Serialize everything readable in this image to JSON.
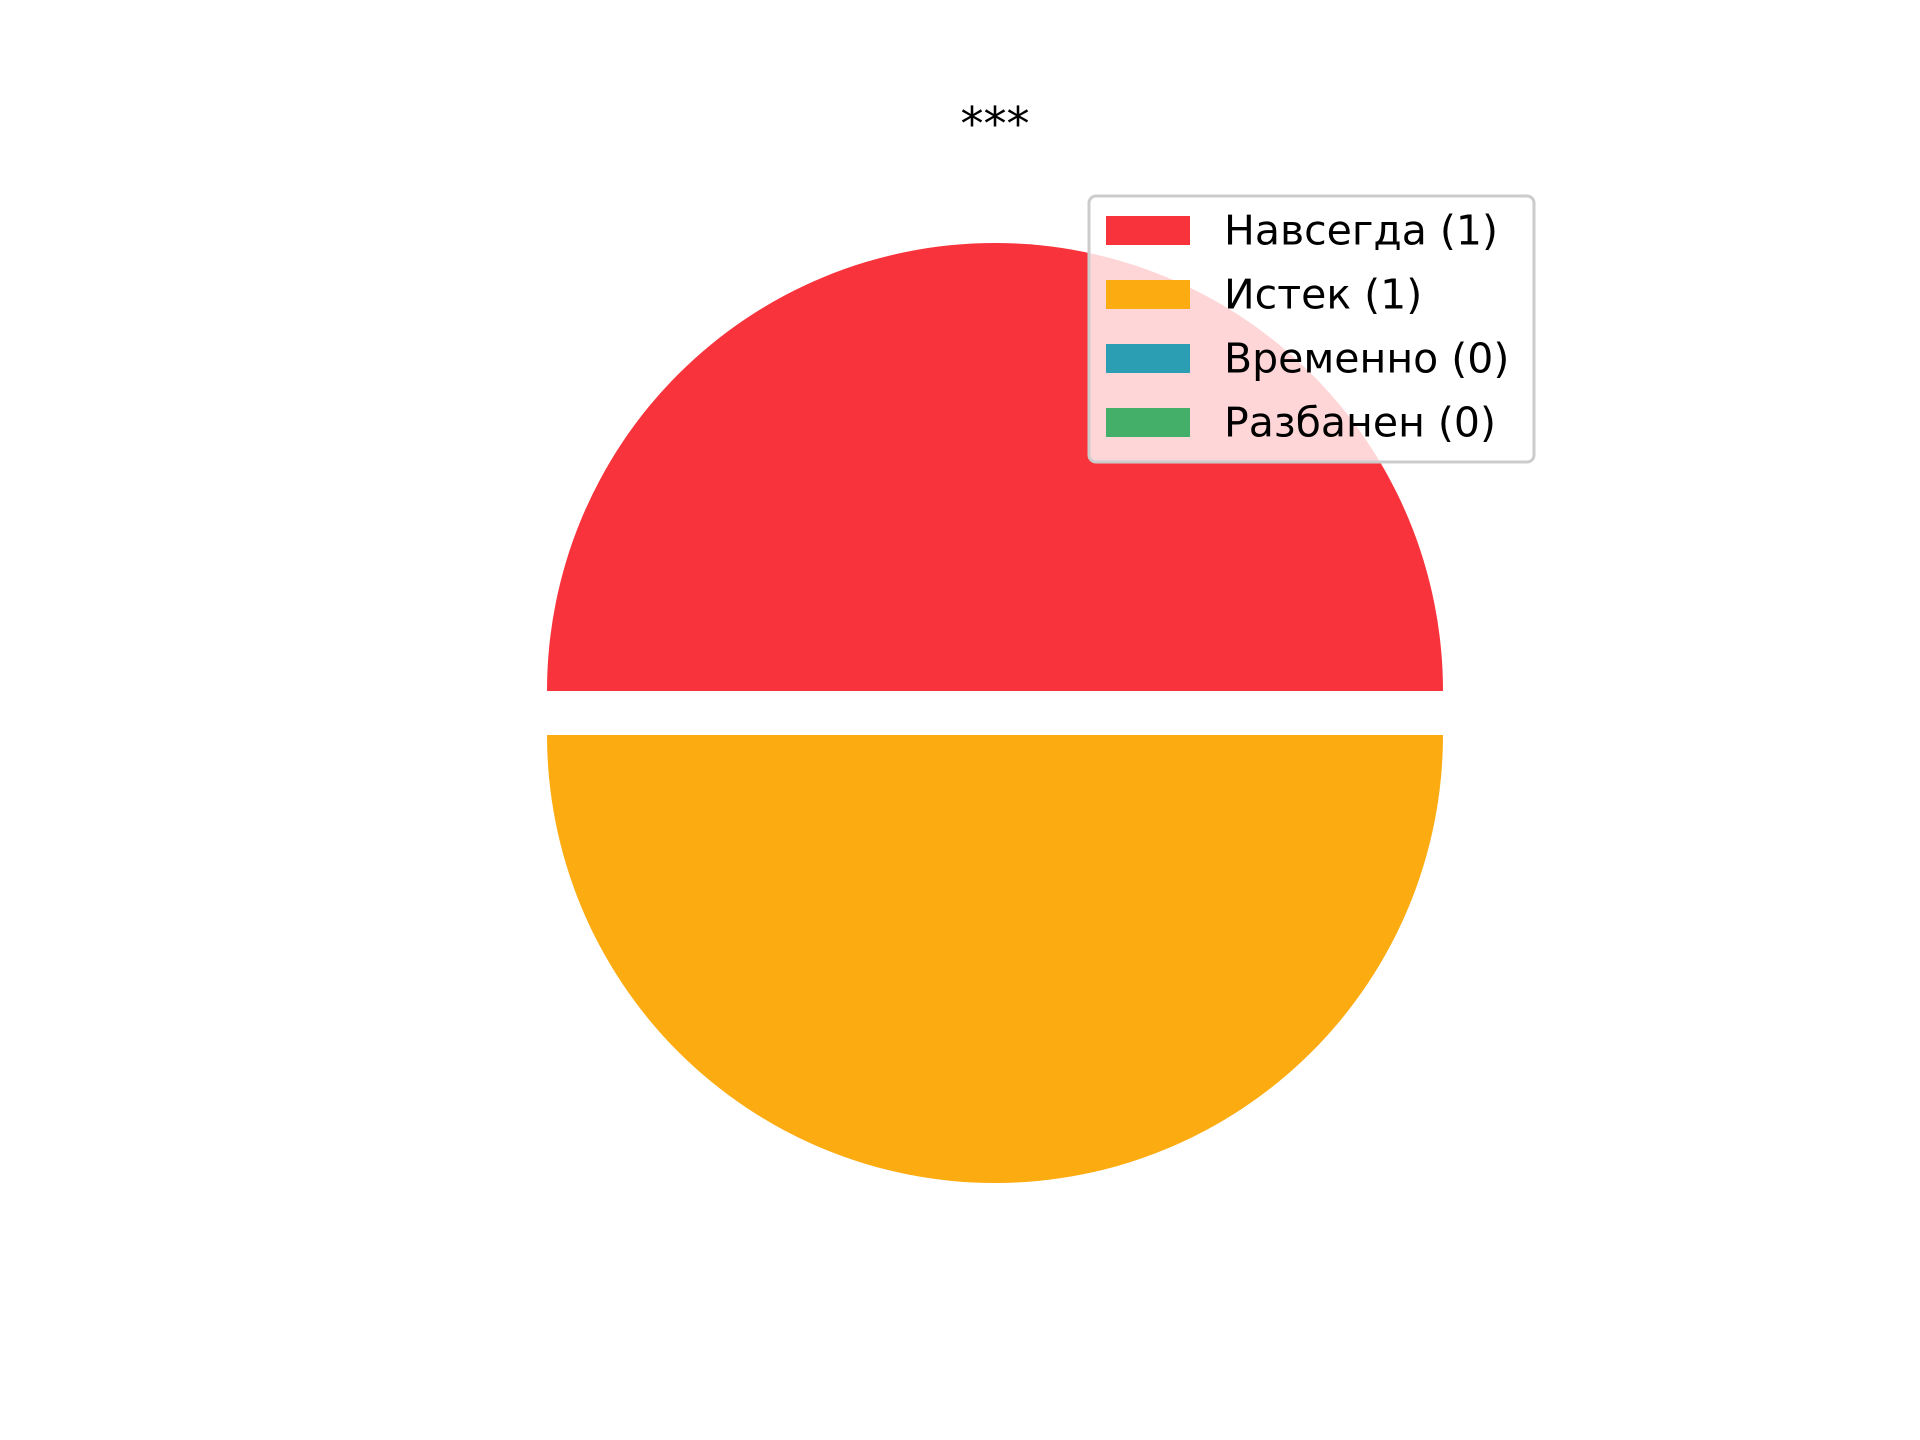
{
  "chart_data": {
    "type": "pie",
    "title": "***",
    "slices": [
      {
        "label": "Навсегда (1)",
        "value": 1,
        "color": "#f8333c"
      },
      {
        "label": "Истек (1)",
        "value": 1,
        "color": "#fcab10"
      },
      {
        "label": "Временно (0)",
        "value": 0,
        "color": "#2b9eb3"
      },
      {
        "label": "Разбанен (0)",
        "value": 0,
        "color": "#44af69"
      }
    ],
    "exploded": true,
    "legend_position": "top-right"
  }
}
